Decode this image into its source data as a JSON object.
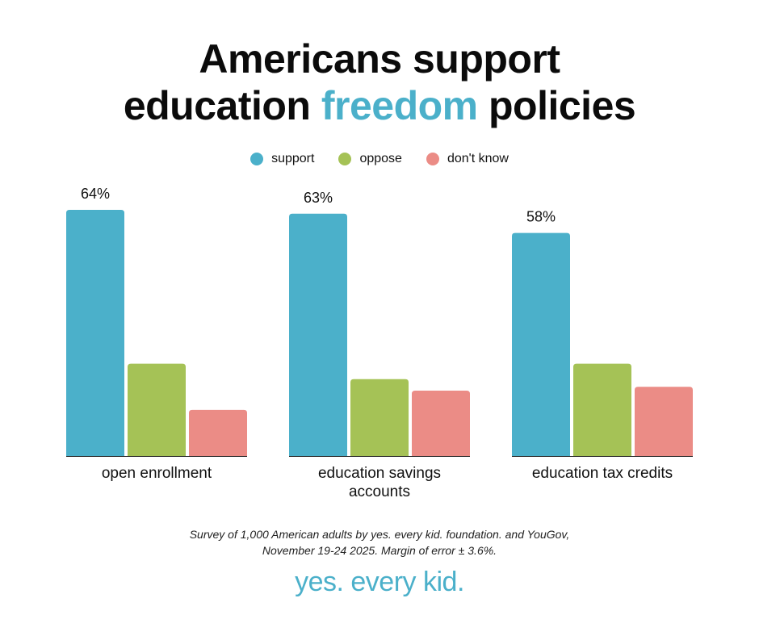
{
  "title": {
    "line1": "Americans support",
    "line2_pre": "education ",
    "line2_accent": "freedom",
    "line2_post": " policies"
  },
  "colors": {
    "accent": "#4bb0ca",
    "support": "#4bb0ca",
    "oppose": "#a5c256",
    "dont_know": "#eb8c86"
  },
  "chart_data": {
    "type": "bar",
    "categories": [
      "open enrollment",
      "education savings accounts",
      "education tax credits"
    ],
    "category_lines": [
      [
        "open enrollment"
      ],
      [
        "education savings",
        "accounts"
      ],
      [
        "education tax credits"
      ]
    ],
    "series": [
      {
        "name": "support",
        "values": [
          64,
          63,
          58
        ],
        "color": "#4bb0ca"
      },
      {
        "name": "oppose",
        "values": [
          24,
          20,
          24
        ],
        "color": "#a5c256"
      },
      {
        "name": "don't know",
        "values": [
          12,
          17,
          18
        ],
        "color": "#eb8c86"
      }
    ],
    "data_labels": [
      [
        "64%",
        null,
        null
      ],
      [
        "63%",
        null,
        null
      ],
      [
        "58%",
        null,
        null
      ]
    ],
    "ylim": [
      0,
      64
    ],
    "grid": false,
    "legend_position": "top-center"
  },
  "footnote": {
    "line1": "Survey of 1,000 American adults by yes. every kid. foundation. and YouGov,",
    "line2": "November 19-24 2025. Margin of error ± 3.6%."
  },
  "logo": {
    "text": "yes. every kid."
  }
}
